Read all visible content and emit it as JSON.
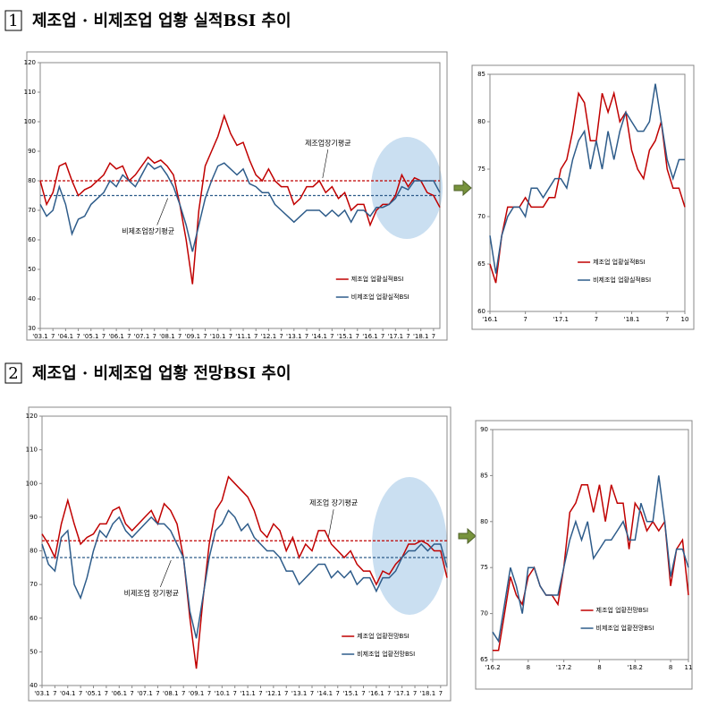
{
  "sections": [
    {
      "number": "1",
      "title": "제조업 · 비제조업 업황 실적BSI 추이"
    },
    {
      "number": "2",
      "title": "제조업 · 비제조업 업황 전망BSI 추이"
    }
  ],
  "chart_data": [
    {
      "type": "line",
      "legend": "lower right",
      "categories": [
        "'03.1",
        null,
        "7",
        null,
        "'04.1",
        null,
        "7",
        null,
        "'05.1",
        null,
        "7",
        null,
        "'06.1",
        null,
        "7",
        null,
        "'07.1",
        null,
        "7",
        null,
        "'08.1",
        null,
        "7",
        null,
        "'09.1",
        null,
        "7",
        null,
        "'10.1",
        null,
        "7",
        null,
        "'11.1",
        null,
        "7",
        null,
        "'12.1",
        null,
        "7",
        null,
        "'13.1",
        null,
        "7",
        null,
        "'14.1",
        null,
        "7",
        null,
        "'15.1",
        null,
        "7",
        null,
        "'16.1",
        null,
        "7",
        null,
        "'17.1",
        null,
        "7",
        null,
        "'18.1",
        null,
        "7",
        null
      ],
      "series": [
        {
          "name": "제조업 업황실적BSI",
          "color": "#c00000",
          "values": [
            80,
            72,
            76,
            85,
            86,
            80,
            75,
            77,
            78,
            80,
            82,
            86,
            84,
            85,
            80,
            82,
            85,
            88,
            86,
            87,
            85,
            82,
            72,
            60,
            45,
            70,
            85,
            90,
            95,
            102,
            96,
            92,
            93,
            87,
            82,
            80,
            84,
            80,
            78,
            78,
            72,
            74,
            78,
            78,
            80,
            76,
            78,
            74,
            76,
            70,
            72,
            72,
            65,
            70,
            72,
            72,
            75,
            82,
            78,
            81,
            80,
            76,
            75,
            71
          ]
        },
        {
          "name": "비제조업 업황실적BSI",
          "color": "#2e5c8a",
          "values": [
            72,
            68,
            70,
            78,
            72,
            62,
            67,
            68,
            72,
            74,
            76,
            80,
            78,
            82,
            80,
            78,
            82,
            86,
            84,
            85,
            82,
            78,
            72,
            65,
            56,
            65,
            74,
            80,
            85,
            86,
            84,
            82,
            84,
            79,
            78,
            76,
            76,
            72,
            70,
            68,
            66,
            68,
            70,
            70,
            70,
            68,
            70,
            68,
            70,
            66,
            70,
            70,
            68,
            71,
            71,
            72,
            74,
            78,
            77,
            80,
            80,
            80,
            80,
            76
          ]
        }
      ],
      "reference_lines": [
        {
          "label": "제조업장기평균",
          "value": 80,
          "color": "#c00000"
        },
        {
          "label": "비제조업장기평균",
          "value": 75,
          "color": "#2e5c8a"
        }
      ],
      "ylim": [
        30,
        120
      ],
      "yticks": [
        30,
        40,
        50,
        60,
        70,
        80,
        90,
        100,
        110,
        120
      ]
    },
    {
      "type": "line",
      "legend": "lower right",
      "categories": [
        "'16.1",
        null,
        null,
        null,
        null,
        null,
        "7",
        null,
        null,
        null,
        null,
        null,
        "'17.1",
        null,
        null,
        null,
        null,
        null,
        "7",
        null,
        null,
        null,
        null,
        null,
        "'18.1",
        null,
        null,
        null,
        null,
        null,
        "7",
        null,
        null,
        "10"
      ],
      "series": [
        {
          "name": "제조업 업황실적BSI",
          "color": "#c00000",
          "values": [
            65,
            63,
            68,
            71,
            71,
            71,
            72,
            71,
            71,
            71,
            72,
            72,
            75,
            76,
            79,
            83,
            82,
            78,
            78,
            83,
            81,
            83,
            80,
            81,
            77,
            75,
            74,
            77,
            78,
            80,
            75,
            73,
            73,
            71
          ]
        },
        {
          "name": "비제조업 업황실적BSI",
          "color": "#2e5c8a",
          "values": [
            68,
            64,
            68,
            70,
            71,
            71,
            70,
            73,
            73,
            72,
            73,
            74,
            74,
            73,
            76,
            78,
            79,
            75,
            78,
            75,
            79,
            76,
            79,
            81,
            80,
            79,
            79,
            80,
            84,
            80,
            76,
            74,
            76,
            76
          ]
        }
      ],
      "ylim": [
        60,
        85
      ],
      "yticks": [
        60,
        65,
        70,
        75,
        80,
        85
      ]
    },
    {
      "type": "line",
      "legend": "lower right",
      "categories": [
        "'03.1",
        null,
        "7",
        null,
        "'04.1",
        null,
        "7",
        null,
        "'05.1",
        null,
        "7",
        null,
        "'06.1",
        null,
        "7",
        null,
        "'07.1",
        null,
        "7",
        null,
        "'08.1",
        null,
        "7",
        null,
        "'09.1",
        null,
        "7",
        null,
        "'10.1",
        null,
        "7",
        null,
        "'11.1",
        null,
        "7",
        null,
        "'12.1",
        null,
        "7",
        null,
        "'13.1",
        null,
        "7",
        null,
        "'14.1",
        null,
        "7",
        null,
        "'15.1",
        null,
        "7",
        null,
        "'16.1",
        null,
        "7",
        null,
        "'17.1",
        null,
        "7",
        null,
        "'18.1",
        null,
        "7",
        null
      ],
      "series": [
        {
          "name": "제조업 업황전망BSI",
          "color": "#c00000",
          "values": [
            85,
            82,
            78,
            88,
            95,
            88,
            82,
            84,
            85,
            88,
            88,
            92,
            93,
            88,
            86,
            88,
            90,
            92,
            88,
            94,
            92,
            88,
            78,
            60,
            45,
            65,
            82,
            92,
            95,
            102,
            100,
            98,
            96,
            92,
            86,
            84,
            88,
            86,
            80,
            84,
            78,
            82,
            80,
            86,
            86,
            82,
            80,
            78,
            80,
            76,
            74,
            74,
            70,
            74,
            73,
            76,
            78,
            82,
            82,
            83,
            82,
            80,
            80,
            72
          ]
        },
        {
          "name": "비제조업 업황전망BSI",
          "color": "#2e5c8a",
          "values": [
            82,
            76,
            74,
            84,
            86,
            70,
            66,
            72,
            80,
            86,
            84,
            88,
            90,
            86,
            84,
            86,
            88,
            90,
            88,
            88,
            86,
            82,
            78,
            62,
            54,
            66,
            78,
            86,
            88,
            92,
            90,
            86,
            88,
            84,
            82,
            80,
            80,
            78,
            74,
            74,
            70,
            72,
            74,
            76,
            76,
            72,
            74,
            72,
            74,
            70,
            72,
            72,
            68,
            72,
            72,
            74,
            78,
            80,
            80,
            82,
            80,
            82,
            82,
            75
          ]
        }
      ],
      "reference_lines": [
        {
          "label": "제조업 장기평균",
          "value": 83,
          "color": "#c00000"
        },
        {
          "label": "비제조업 장기평균",
          "value": 78,
          "color": "#2e5c8a"
        }
      ],
      "ylim": [
        40,
        120
      ],
      "yticks": [
        40,
        50,
        60,
        70,
        80,
        90,
        100,
        110,
        120
      ]
    },
    {
      "type": "line",
      "legend": "lower right",
      "categories": [
        "'16.2",
        null,
        null,
        null,
        null,
        null,
        "8",
        null,
        null,
        null,
        null,
        null,
        "'17.2",
        null,
        null,
        null,
        null,
        null,
        "8",
        null,
        null,
        null,
        null,
        null,
        "'18.2",
        null,
        null,
        null,
        null,
        null,
        "8",
        null,
        null,
        "11"
      ],
      "series": [
        {
          "name": "제조업 업황전망BSI",
          "color": "#c00000",
          "values": [
            66,
            66,
            70,
            74,
            72,
            71,
            74,
            75,
            73,
            72,
            72,
            71,
            75,
            81,
            82,
            84,
            84,
            81,
            84,
            80,
            84,
            82,
            82,
            77,
            82,
            81,
            79,
            80,
            79,
            80,
            73,
            77,
            78,
            72
          ]
        },
        {
          "name": "비제조업 업황전망BSI",
          "color": "#2e5c8a",
          "values": [
            68,
            67,
            71,
            75,
            73,
            70,
            75,
            75,
            73,
            72,
            72,
            72,
            75,
            78,
            80,
            78,
            80,
            76,
            77,
            78,
            78,
            79,
            80,
            78,
            78,
            82,
            80,
            80,
            85,
            80,
            74,
            77,
            77,
            75
          ]
        }
      ],
      "ylim": [
        65,
        90
      ],
      "yticks": [
        65,
        70,
        75,
        80,
        85,
        90
      ]
    }
  ]
}
